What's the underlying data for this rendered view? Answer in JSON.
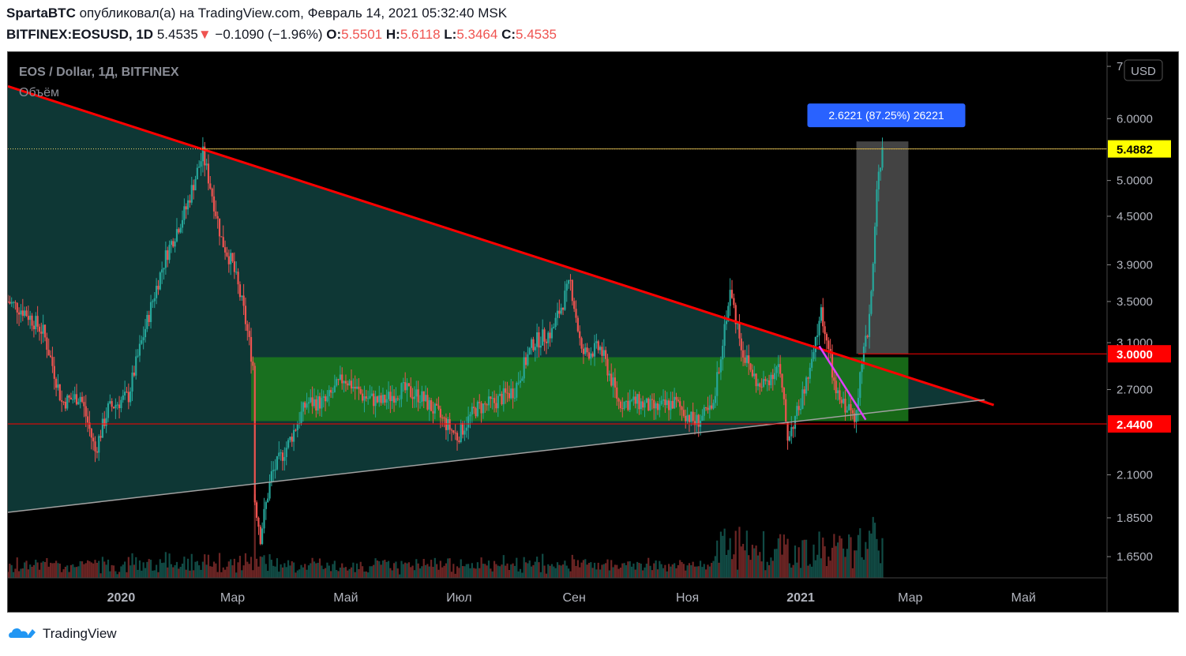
{
  "header": {
    "author": "SpartaBTC",
    "published_text": "опубликовал(а) на TradingView.com, Февраль 14, 2021 05:32:40 MSK",
    "symbol": "BITFINEX:EOSUSD, 1D",
    "last": "5.4535",
    "change_arrow": "▼",
    "change": "−0.1090 (−1.96%)",
    "o_label": "O:",
    "o_value": "5.5501",
    "h_label": "H:",
    "h_value": "5.6118",
    "l_label": "L:",
    "l_value": "5.3464",
    "c_label": "C:",
    "c_value": "5.4535"
  },
  "legend": {
    "title": "EOS / Dollar, 1Д, BITFINEX",
    "volume": "Объём"
  },
  "currency_button": "USD",
  "measure_label": "2.6221 (87.25%) 26221",
  "footer": {
    "brand": "TradingView"
  },
  "colors": {
    "background": "#000000",
    "up": "#26a69a",
    "down": "#ef5350",
    "trendline": "#ff0000",
    "triangle_fill": "#0f3a38",
    "box_fill": "#1b7a1b",
    "magenta": "#e040fb",
    "measure_box": "#5a5a5a",
    "label_blue": "#2962ff"
  },
  "chart_data": {
    "type": "candlestick",
    "scale": "log",
    "ylim": [
      1.55,
      7.3
    ],
    "y_ticks": [
      "7",
      "6.0000",
      "5.0000",
      "4.5000",
      "3.9000",
      "3.5000",
      "3.1000",
      "2.7000",
      "2.1000",
      "1.8500",
      "1.6500"
    ],
    "price_labels": [
      {
        "value": 5.4882,
        "text": "5.4882",
        "bg": "#ffff00",
        "fg": "#000000"
      },
      {
        "value": 3.0,
        "text": "3.0000",
        "bg": "#ff0000",
        "fg": "#ffffff"
      },
      {
        "value": 2.44,
        "text": "2.4400",
        "bg": "#ff0000",
        "fg": "#ffffff"
      }
    ],
    "x_ticks": [
      {
        "label": "2020",
        "date": "2020-01-01",
        "bold": true
      },
      {
        "label": "Мар",
        "date": "2020-03-01",
        "bold": false
      },
      {
        "label": "Май",
        "date": "2020-05-01",
        "bold": false
      },
      {
        "label": "Июл",
        "date": "2020-07-01",
        "bold": false
      },
      {
        "label": "Сен",
        "date": "2020-09-01",
        "bold": false
      },
      {
        "label": "Ноя",
        "date": "2020-11-01",
        "bold": false
      },
      {
        "label": "2021",
        "date": "2021-01-01",
        "bold": true
      },
      {
        "label": "Мар",
        "date": "2021-03-01",
        "bold": false
      },
      {
        "label": "Май",
        "date": "2021-05-01",
        "bold": false
      }
    ],
    "x_range": [
      "2019-11-01",
      "2021-06-15"
    ],
    "close_path": [
      [
        "2019-11-01",
        3.5
      ],
      [
        "2019-11-10",
        3.4
      ],
      [
        "2019-11-20",
        3.2
      ],
      [
        "2019-11-30",
        2.6
      ],
      [
        "2019-12-10",
        2.65
      ],
      [
        "2019-12-18",
        2.25
      ],
      [
        "2019-12-25",
        2.55
      ],
      [
        "2020-01-05",
        2.65
      ],
      [
        "2020-01-15",
        3.3
      ],
      [
        "2020-01-25",
        4.0
      ],
      [
        "2020-02-05",
        4.6
      ],
      [
        "2020-02-14",
        5.4
      ],
      [
        "2020-02-24",
        4.2
      ],
      [
        "2020-03-01",
        3.9
      ],
      [
        "2020-03-07",
        3.4
      ],
      [
        "2020-03-12",
        2.9
      ],
      [
        "2020-03-13",
        1.95
      ],
      [
        "2020-03-16",
        1.75
      ],
      [
        "2020-03-22",
        2.1
      ],
      [
        "2020-03-31",
        2.3
      ],
      [
        "2020-04-10",
        2.6
      ],
      [
        "2020-04-20",
        2.6
      ],
      [
        "2020-04-30",
        2.8
      ],
      [
        "2020-05-10",
        2.65
      ],
      [
        "2020-05-20",
        2.6
      ],
      [
        "2020-05-31",
        2.7
      ],
      [
        "2020-06-10",
        2.65
      ],
      [
        "2020-06-20",
        2.5
      ],
      [
        "2020-06-30",
        2.35
      ],
      [
        "2020-07-10",
        2.55
      ],
      [
        "2020-07-20",
        2.6
      ],
      [
        "2020-07-31",
        2.7
      ],
      [
        "2020-08-10",
        3.1
      ],
      [
        "2020-08-20",
        3.2
      ],
      [
        "2020-08-30",
        3.7
      ],
      [
        "2020-09-05",
        3.0
      ],
      [
        "2020-09-15",
        3.05
      ],
      [
        "2020-09-25",
        2.6
      ],
      [
        "2020-10-05",
        2.6
      ],
      [
        "2020-10-15",
        2.55
      ],
      [
        "2020-10-25",
        2.6
      ],
      [
        "2020-11-05",
        2.45
      ],
      [
        "2020-11-15",
        2.55
      ],
      [
        "2020-11-24",
        3.6
      ],
      [
        "2020-12-01",
        3.0
      ],
      [
        "2020-12-10",
        2.7
      ],
      [
        "2020-12-20",
        2.9
      ],
      [
        "2020-12-25",
        2.35
      ],
      [
        "2020-12-31",
        2.55
      ],
      [
        "2021-01-07",
        2.9
      ],
      [
        "2021-01-12",
        3.4
      ],
      [
        "2021-01-20",
        2.65
      ],
      [
        "2021-01-30",
        2.5
      ],
      [
        "2021-02-04",
        3.0
      ],
      [
        "2021-02-06",
        3.2
      ],
      [
        "2021-02-08",
        3.6
      ],
      [
        "2021-02-10",
        4.4
      ],
      [
        "2021-02-12",
        5.2
      ],
      [
        "2021-02-14",
        5.45
      ]
    ],
    "drawings": {
      "resistance_line": {
        "from": [
          "2019-11-01",
          6.6
        ],
        "to": [
          "2021-04-15",
          2.58
        ]
      },
      "support_line": {
        "from": [
          "2019-11-01",
          1.88
        ],
        "to": [
          "2021-04-10",
          2.62
        ]
      },
      "range_box": {
        "from_date": "2020-03-11",
        "to_date": "2021-02-28",
        "top": 2.97,
        "bottom": 2.46
      },
      "magenta_line": {
        "from": [
          "2021-01-11",
          3.07
        ],
        "to": [
          "2021-02-05",
          2.47
        ]
      },
      "measure_box": {
        "from_date": "2021-01-31",
        "to_date": "2021-02-28",
        "top": 5.61,
        "bottom": 3.0
      },
      "hline_price": 5.4882,
      "hline_3": 3.0,
      "hline_244": 2.44
    }
  }
}
